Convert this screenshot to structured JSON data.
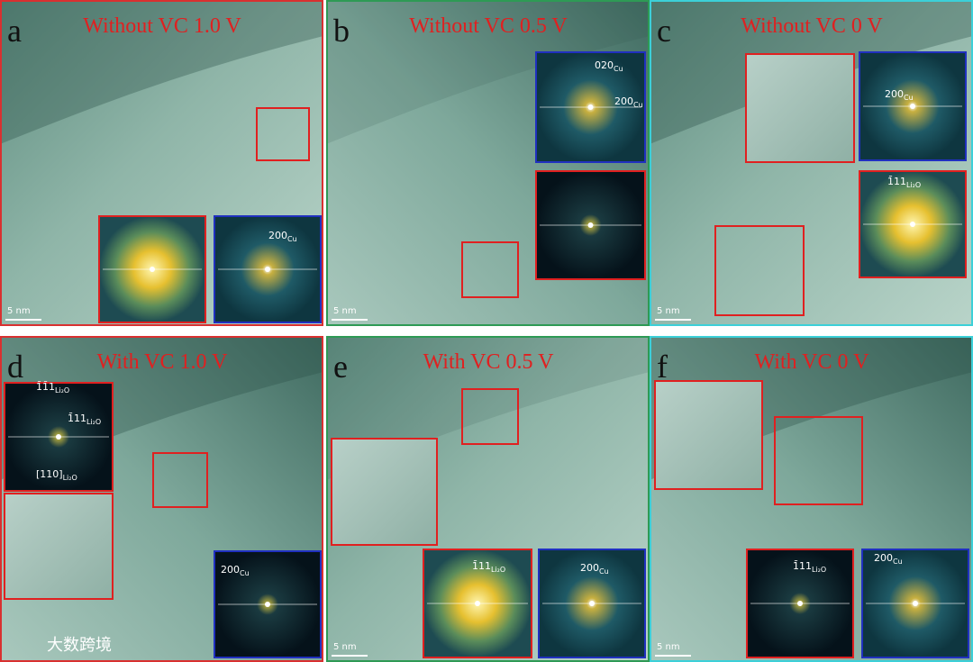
{
  "panels": [
    {
      "letter": "a",
      "title": "Without VC 1.0 V",
      "scale_bar": "5 nm",
      "fft_labels": [
        {
          "text": "200",
          "sub": "Cu"
        }
      ]
    },
    {
      "letter": "b",
      "title": "Without VC 0.5 V",
      "scale_bar": "5 nm",
      "fft_labels": [
        {
          "text": "020",
          "sub": "Cu"
        },
        {
          "text": "200",
          "sub": "Cu"
        }
      ]
    },
    {
      "letter": "c",
      "title": "Without VC 0 V",
      "scale_bar": "5 nm",
      "fft_labels": [
        {
          "text": "200",
          "sub": "Cu"
        },
        {
          "text": "1̄11",
          "sub": "Li₂O"
        }
      ]
    },
    {
      "letter": "d",
      "title": "With VC 1.0 V",
      "fft_labels": [
        {
          "text": "1̄1̄1",
          "sub": "Li₂O"
        },
        {
          "text": "1̄11",
          "sub": "Li₂O"
        },
        {
          "text": "[110]",
          "sub": "Li₂O"
        },
        {
          "text": "200",
          "sub": "Cu"
        }
      ]
    },
    {
      "letter": "e",
      "title": "With VC 0.5 V",
      "scale_bar": "5 nm",
      "fft_labels": [
        {
          "text": "1̄11",
          "sub": "Li₂O"
        },
        {
          "text": "200",
          "sub": "Cu"
        }
      ]
    },
    {
      "letter": "f",
      "title": "With VC 0 V",
      "scale_bar": "5 nm",
      "fft_labels": [
        {
          "text": "1̄11",
          "sub": "Li₂O"
        },
        {
          "text": "200",
          "sub": "Cu"
        }
      ]
    }
  ],
  "watermark": "大数跨境"
}
